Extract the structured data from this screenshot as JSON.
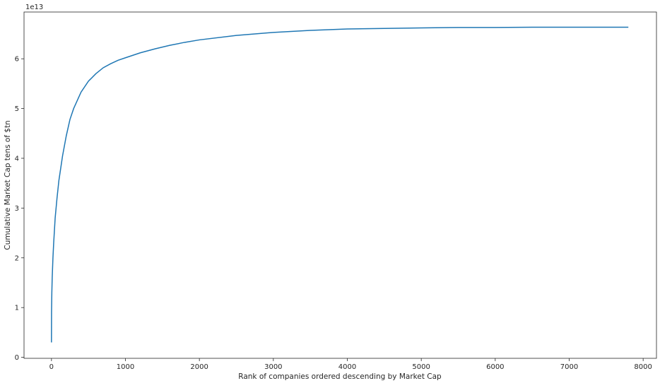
{
  "chart_data": {
    "type": "line",
    "title": "",
    "xlabel": "Rank of companies ordered descending by Market Cap",
    "ylabel": "Cumulative Market Cap tens of $tn",
    "y_offset_text": "1e13",
    "xlim": [
      -371,
      8180
    ],
    "ylim": [
      -0.02,
      6.94
    ],
    "y_scale_multiplier": 10000000000000.0,
    "x_ticks": [
      0,
      1000,
      2000,
      3000,
      4000,
      5000,
      6000,
      7000,
      8000
    ],
    "x_tick_labels": [
      "0",
      "1000",
      "2000",
      "3000",
      "4000",
      "5000",
      "6000",
      "7000",
      "8000"
    ],
    "y_ticks": [
      0,
      1,
      2,
      3,
      4,
      5,
      6
    ],
    "y_tick_labels": [
      "0",
      "1",
      "2",
      "3",
      "4",
      "5",
      "6"
    ],
    "grid": false,
    "series": [
      {
        "color": "#1f77b4",
        "x": [
          0,
          1,
          5,
          10,
          20,
          30,
          50,
          75,
          100,
          150,
          200,
          250,
          300,
          400,
          500,
          600,
          700,
          800,
          900,
          1000,
          1200,
          1400,
          1600,
          1800,
          2000,
          2500,
          3000,
          3500,
          4000,
          4500,
          5000,
          5500,
          6000,
          6500,
          7000,
          7500,
          7800
        ],
        "y": [
          0.3,
          0.9,
          1.3,
          1.6,
          2.0,
          2.3,
          2.8,
          3.2,
          3.55,
          4.05,
          4.45,
          4.78,
          5.0,
          5.33,
          5.55,
          5.7,
          5.82,
          5.9,
          5.97,
          6.02,
          6.12,
          6.2,
          6.27,
          6.33,
          6.38,
          6.47,
          6.53,
          6.57,
          6.6,
          6.61,
          6.62,
          6.63,
          6.63,
          6.635,
          6.635,
          6.635,
          6.635
        ]
      }
    ]
  }
}
